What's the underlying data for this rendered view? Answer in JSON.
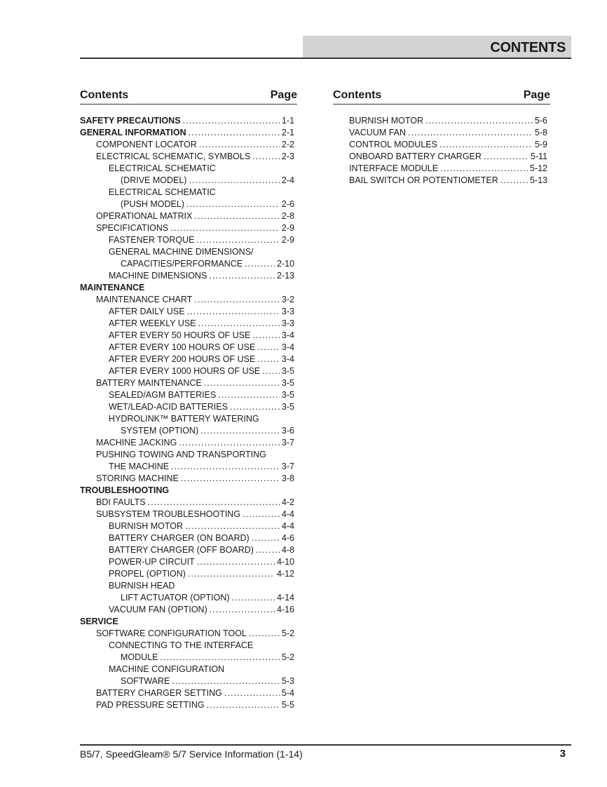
{
  "header": {
    "title": "CONTENTS"
  },
  "columns": [
    {
      "head_contents": "Contents",
      "head_page": "Page",
      "entries": [
        {
          "text": "SAFETY PRECAUTIONS",
          "page": "1-1",
          "level": 0
        },
        {
          "text": "GENERAL INFORMATION",
          "page": "2-1",
          "level": 0
        },
        {
          "text": "COMPONENT LOCATOR",
          "page": "2-2",
          "level": 1
        },
        {
          "text": "ELECTRICAL SCHEMATIC, SYMBOLS",
          "page": "2-3",
          "level": 1
        },
        {
          "text": "ELECTRICAL SCHEMATIC",
          "page": "",
          "level": 2
        },
        {
          "text": "(DRIVE MODEL)",
          "page": "2-4",
          "level": 3
        },
        {
          "text": "ELECTRICAL SCHEMATIC",
          "page": "",
          "level": 2
        },
        {
          "text": "(PUSH MODEL)",
          "page": "2-6",
          "level": 3
        },
        {
          "text": "OPERATIONAL MATRIX",
          "page": "2-8",
          "level": 1
        },
        {
          "text": "SPECIFICATIONS",
          "page": "2-9",
          "level": 1
        },
        {
          "text": "FASTENER TORQUE",
          "page": "2-9",
          "level": 2
        },
        {
          "text": "GENERAL MACHINE DIMENSIONS/",
          "page": "",
          "level": 2
        },
        {
          "text": "CAPACITIES/PERFORMANCE",
          "page": "2-10",
          "level": 3
        },
        {
          "text": "MACHINE DIMENSIONS",
          "page": "2-13",
          "level": 2
        },
        {
          "text": "MAINTENANCE",
          "page": "",
          "level": 0
        },
        {
          "text": "MAINTENANCE CHART",
          "page": "3-2",
          "level": 1
        },
        {
          "text": "AFTER DAILY USE",
          "page": "3-3",
          "level": 2
        },
        {
          "text": "AFTER WEEKLY USE",
          "page": "3-3",
          "level": 2
        },
        {
          "text": "AFTER EVERY 50 HOURS OF USE",
          "page": "3-4",
          "level": 2
        },
        {
          "text": "AFTER EVERY 100 HOURS OF USE",
          "page": "3-4",
          "level": 2
        },
        {
          "text": "AFTER EVERY 200 HOURS OF USE",
          "page": "3-4",
          "level": 2
        },
        {
          "text": "AFTER EVERY 1000 HOURS OF USE",
          "page": "3-5",
          "level": 2
        },
        {
          "text": "BATTERY MAINTENANCE",
          "page": "3-5",
          "level": 1
        },
        {
          "text": "SEALED/AGM BATTERIES",
          "page": "3-5",
          "level": 2
        },
        {
          "text": "WET/LEAD-ACID BATTERIES",
          "page": "3-5",
          "level": 2
        },
        {
          "text": "HYDROLINK™ BATTERY WATERING",
          "page": "",
          "level": 2
        },
        {
          "text": "SYSTEM (OPTION)",
          "page": "3-6",
          "level": 3
        },
        {
          "text": "MACHINE JACKING",
          "page": "3-7",
          "level": 1
        },
        {
          "text": "PUSHING TOWING AND TRANSPORTING",
          "page": "",
          "level": 1
        },
        {
          "text": "THE MACHINE",
          "page": "3-7",
          "level": 2
        },
        {
          "text": "STORING MACHINE",
          "page": "3-8",
          "level": 1
        },
        {
          "text": "TROUBLESHOOTING",
          "page": "",
          "level": 0
        },
        {
          "text": "BDI FAULTS",
          "page": "4-2",
          "level": 1
        },
        {
          "text": "SUBSYSTEM TROUBLESHOOTING",
          "page": "4-4",
          "level": 1
        },
        {
          "text": "BURNISH MOTOR",
          "page": "4-4",
          "level": 2
        },
        {
          "text": "BATTERY CHARGER (ON BOARD)",
          "page": "4-6",
          "level": 2
        },
        {
          "text": "BATTERY CHARGER (OFF BOARD)",
          "page": "4-8",
          "level": 2
        },
        {
          "text": "POWER-UP CIRCUIT",
          "page": "4-10",
          "level": 2
        },
        {
          "text": "PROPEL (OPTION)",
          "page": "4-12",
          "level": 2
        },
        {
          "text": "BURNISH HEAD",
          "page": "",
          "level": 2
        },
        {
          "text": "LIFT ACTUATOR (OPTION)",
          "page": "4-14",
          "level": 3
        },
        {
          "text": "VACUUM FAN (OPTION)",
          "page": "4-16",
          "level": 2
        },
        {
          "text": "SERVICE",
          "page": "",
          "level": 0
        },
        {
          "text": "SOFTWARE CONFIGURATION TOOL",
          "page": "5-2",
          "level": 1
        },
        {
          "text": "CONNECTING TO THE INTERFACE",
          "page": "",
          "level": 2
        },
        {
          "text": "MODULE",
          "page": "5-2",
          "level": 3
        },
        {
          "text": "MACHINE CONFIGURATION",
          "page": "",
          "level": 2
        },
        {
          "text": "SOFTWARE",
          "page": "5-3",
          "level": 3
        },
        {
          "text": "BATTERY CHARGER SETTING",
          "page": "5-4",
          "level": 1
        },
        {
          "text": "PAD PRESSURE SETTING",
          "page": "5-5",
          "level": 1
        }
      ]
    },
    {
      "head_contents": "Contents",
      "head_page": "Page",
      "entries": [
        {
          "text": "BURNISH MOTOR",
          "page": "5-6",
          "level": 1
        },
        {
          "text": "VACUUM FAN",
          "page": "5-8",
          "level": 1
        },
        {
          "text": "CONTROL MODULES",
          "page": "5-9",
          "level": 1
        },
        {
          "text": "ONBOARD BATTERY CHARGER",
          "page": "5-11",
          "level": 1
        },
        {
          "text": "INTERFACE MODULE",
          "page": "5-12",
          "level": 1
        },
        {
          "text": "BAIL SWITCH OR POTENTIOMETER",
          "page": "5-13",
          "level": 1
        }
      ]
    }
  ],
  "footer": {
    "text": "B5/7, SpeedGleam® 5/7 Service Information (1-14)",
    "page_number": "3"
  }
}
